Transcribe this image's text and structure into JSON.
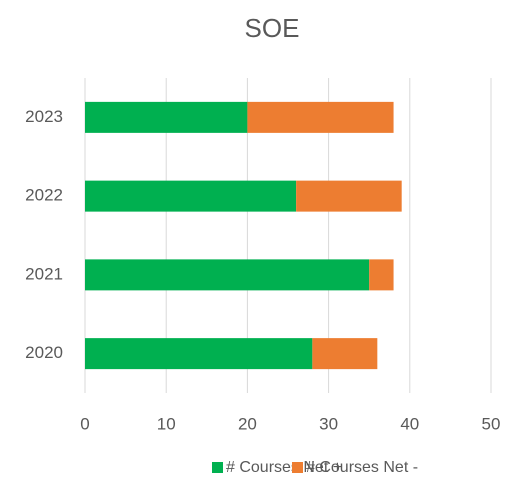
{
  "chart_data": {
    "type": "stacked_barh",
    "title": "SOE",
    "categories": [
      "2020",
      "2021",
      "2022",
      "2023"
    ],
    "series": [
      {
        "name": "# Courses Net +",
        "color": "#00b050",
        "values": [
          28,
          35,
          26,
          20
        ]
      },
      {
        "name": "# Courses Net -",
        "color": "#ed7d31",
        "values": [
          8,
          3,
          13,
          18
        ]
      }
    ],
    "xlim": [
      0,
      50
    ],
    "xticks": [
      0,
      10,
      20,
      30,
      40,
      50
    ],
    "grid": true,
    "legend": "bottom"
  }
}
